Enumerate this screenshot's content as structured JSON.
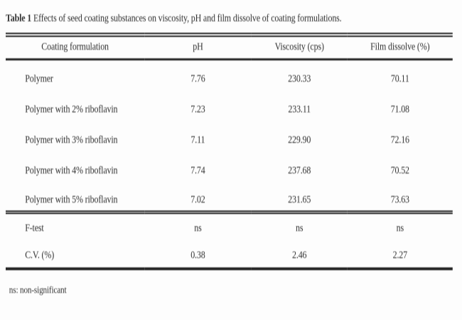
{
  "caption": {
    "label": "Table 1",
    "text": "Effects of seed coating substances on viscosity, pH and film dissolve of coating formulations."
  },
  "table": {
    "headers": [
      "Coating formulation",
      "pH",
      "Viscosity (cps)",
      "Film dissolve (%)"
    ],
    "rows": [
      {
        "formulation": "Polymer",
        "ph": "7.76",
        "viscosity": "230.33",
        "film_dissolve": "70.11"
      },
      {
        "formulation": "Polymer with 2% riboflavin",
        "ph": "7.23",
        "viscosity": "233.11",
        "film_dissolve": "71.08"
      },
      {
        "formulation": "Polymer with 3% riboflavin",
        "ph": "7.11",
        "viscosity": "229.90",
        "film_dissolve": "72.16"
      },
      {
        "formulation": "Polymer with 4% riboflavin",
        "ph": "7.74",
        "viscosity": "237.68",
        "film_dissolve": "70.52"
      },
      {
        "formulation": "Polymer with 5% riboflavin",
        "ph": "7.02",
        "viscosity": "231.65",
        "film_dissolve": "73.63"
      }
    ],
    "stats": [
      {
        "formulation": "F-test",
        "ph": "ns",
        "viscosity": "ns",
        "film_dissolve": "ns"
      },
      {
        "formulation": "C.V. (%)",
        "ph": "0.38",
        "viscosity": "2.46",
        "film_dissolve": "2.27"
      }
    ]
  },
  "footnote": "ns: non-significant",
  "colors": {
    "text": "#333333",
    "rule": "#262626",
    "bg": "#fdfdfd"
  }
}
